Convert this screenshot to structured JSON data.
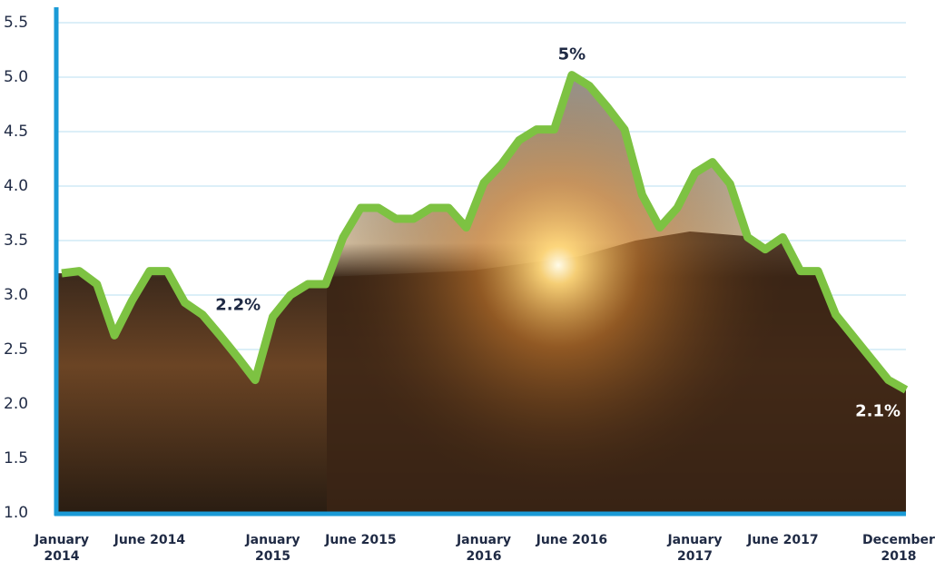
{
  "chart_data": {
    "type": "line",
    "categories": [
      "January 2014",
      null,
      null,
      null,
      null,
      "June 2014",
      null,
      null,
      null,
      null,
      null,
      null,
      "January 2015",
      null,
      null,
      null,
      null,
      "June 2015",
      null,
      null,
      null,
      null,
      null,
      null,
      "January 2016",
      null,
      null,
      null,
      null,
      "June 2016",
      null,
      null,
      null,
      null,
      null,
      null,
      "January 2017",
      null,
      null,
      null,
      null,
      "June 2017",
      null,
      null,
      null,
      null,
      null,
      null,
      "December 2018"
    ],
    "values": [
      3.2,
      3.22,
      3.1,
      2.63,
      2.95,
      3.22,
      3.22,
      2.93,
      2.82,
      2.63,
      2.43,
      2.22,
      2.8,
      3.0,
      3.1,
      3.1,
      3.53,
      3.8,
      3.8,
      3.7,
      3.7,
      3.8,
      3.8,
      3.62,
      4.03,
      4.2,
      4.42,
      4.52,
      4.52,
      5.02,
      4.92,
      4.73,
      4.52,
      3.92,
      3.62,
      3.8,
      4.12,
      4.22,
      4.02,
      3.53,
      3.42,
      3.53,
      3.22,
      3.22,
      2.82,
      2.62,
      2.42,
      2.22,
      2.13
    ],
    "value_labels": [
      null,
      null,
      null,
      null,
      null,
      null,
      null,
      null,
      null,
      null,
      null,
      "2.2%",
      null,
      null,
      null,
      null,
      null,
      null,
      null,
      null,
      null,
      null,
      null,
      null,
      null,
      null,
      null,
      null,
      null,
      "5%",
      null,
      null,
      null,
      null,
      null,
      null,
      null,
      null,
      null,
      null,
      null,
      null,
      null,
      null,
      null,
      null,
      null,
      null,
      "2.1%"
    ],
    "color": "#7dc242",
    "ylim": [
      1.0,
      5.5
    ],
    "yticks": [
      {
        "value": 1.0,
        "label": "1.0"
      },
      1.5,
      {
        "value": 2.0,
        "label": "2.0"
      },
      2.5,
      {
        "value": 3.0,
        "label": "3.0"
      },
      3.5,
      {
        "value": 4.0,
        "label": "4.0"
      },
      4.5,
      {
        "value": 5.0,
        "label": "5.0"
      },
      5.5
    ],
    "grid": true
  }
}
